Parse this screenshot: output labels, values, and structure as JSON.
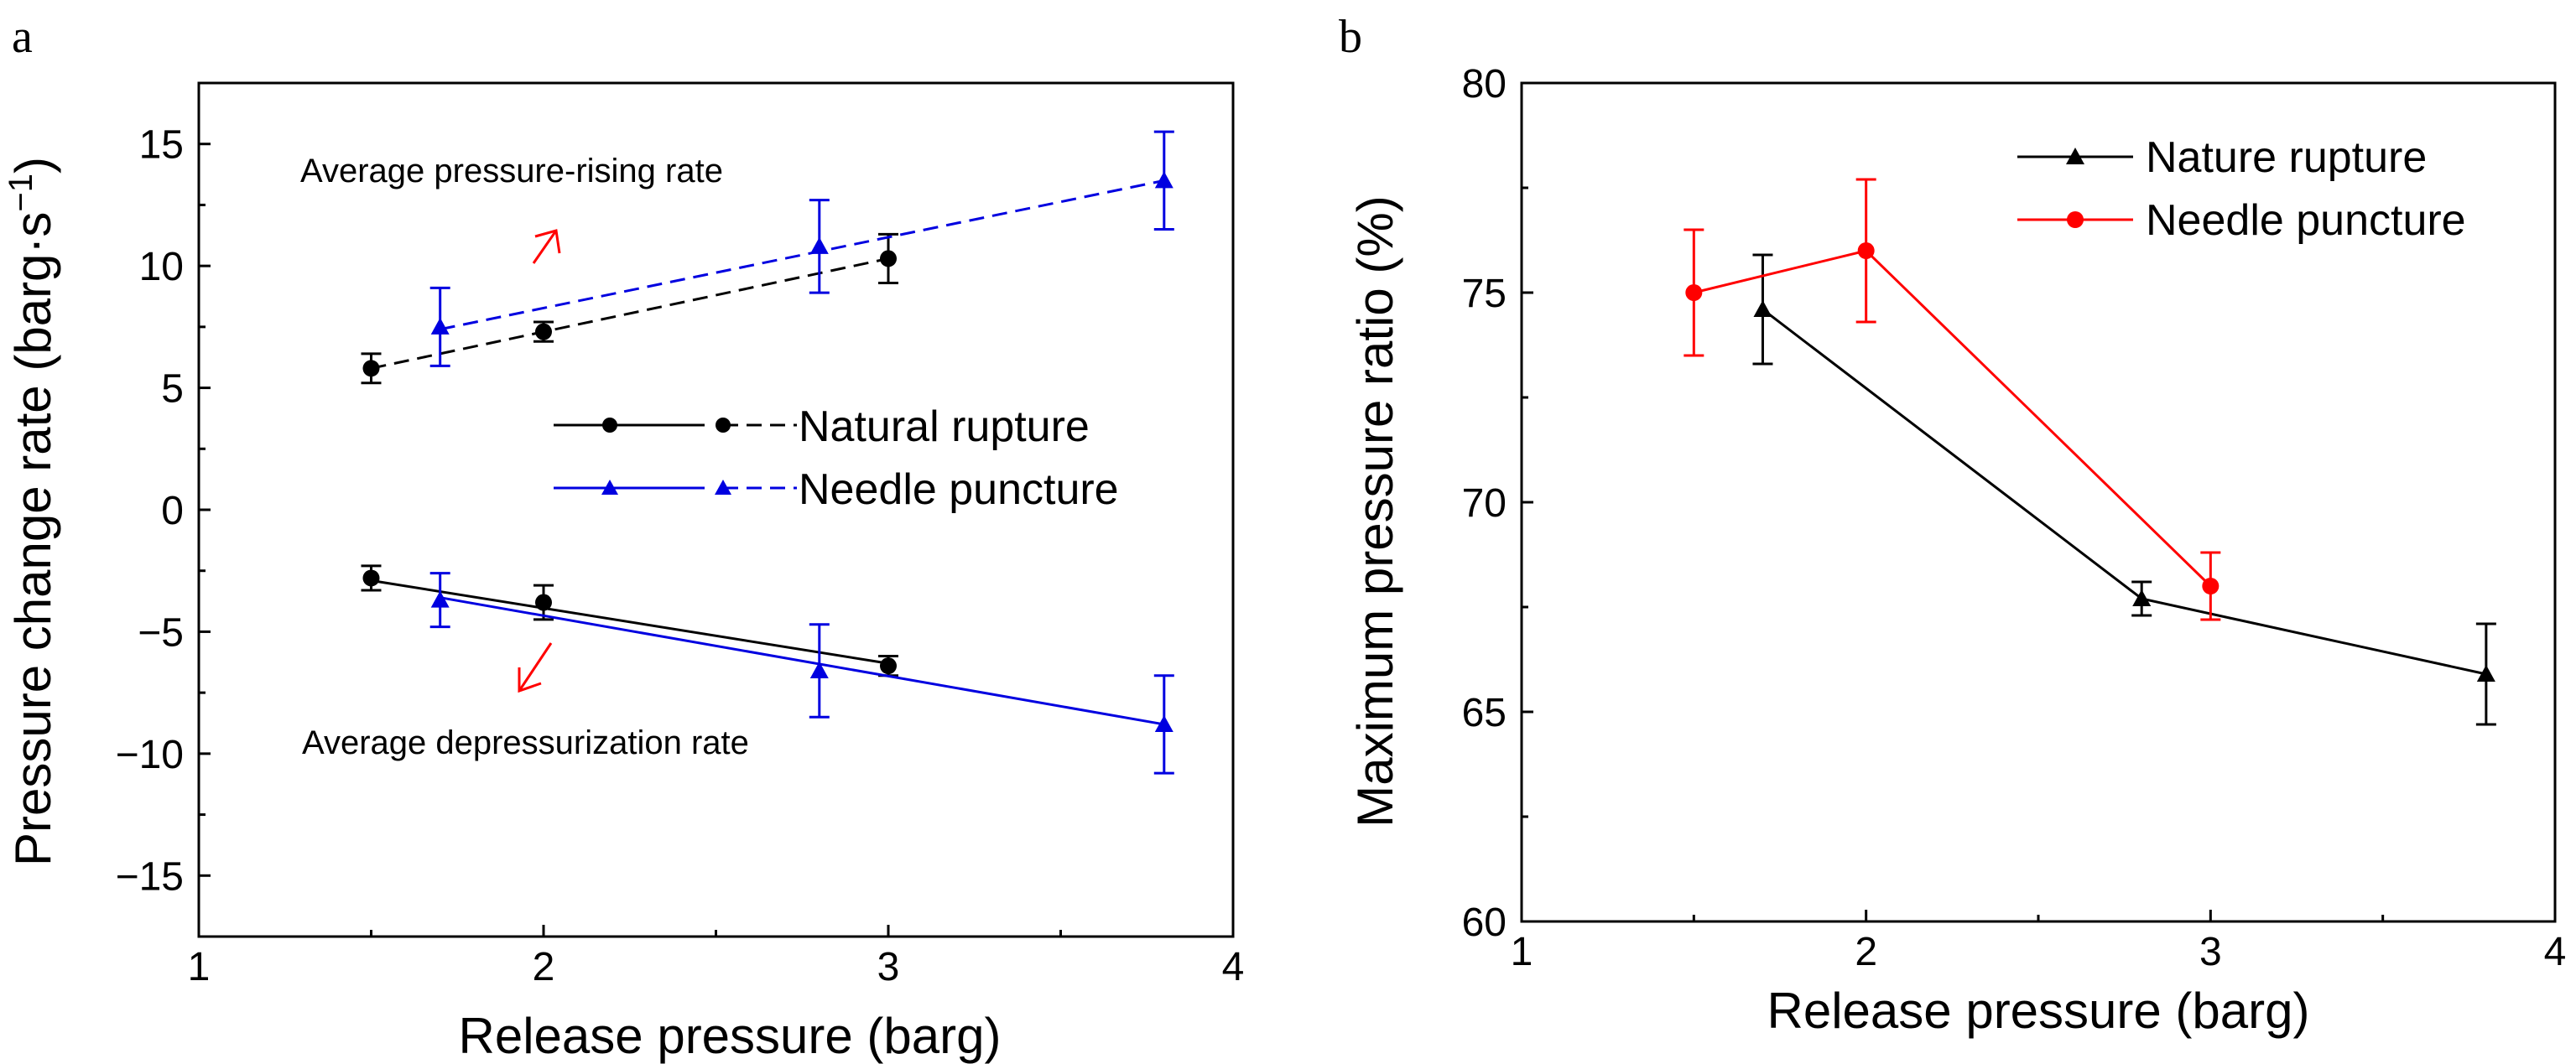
{
  "chart_data": [
    {
      "panel_label": "a",
      "type": "line",
      "xlabel": "Release pressure (barg)",
      "ylabel_main": "Pressure change rate (barg·s",
      "ylabel_sup": "−1",
      "ylabel_close": ")",
      "xlim": [
        1,
        4
      ],
      "ylim": [
        -17.5,
        17.5
      ],
      "xticks": [
        1,
        2,
        3,
        4
      ],
      "yticks": [
        -15,
        -10,
        -5,
        0,
        5,
        10,
        15
      ],
      "ytick_labels": [
        "−15",
        "−10",
        "−5",
        "0",
        "5",
        "10",
        "15"
      ],
      "annotations": [
        "Average pressure-rising rate",
        "Average depressurization rate"
      ],
      "legend": [
        "Natural rupture",
        "Needle puncture"
      ],
      "series": [
        {
          "name": "Natural rupture",
          "kind": "rising",
          "color": "#000000",
          "marker": "circle",
          "linestyle": "dashed",
          "x": [
            1.5,
            2.0,
            3.0
          ],
          "y": [
            5.8,
            7.3,
            10.3
          ],
          "err": [
            0.6,
            0.4,
            1.0
          ],
          "fit": [
            [
              1.5,
              5.8
            ],
            [
              3.0,
              10.3
            ]
          ]
        },
        {
          "name": "Needle puncture",
          "kind": "rising",
          "color": "#0000e0",
          "marker": "triangle",
          "linestyle": "dashed",
          "x": [
            1.7,
            2.8,
            3.8
          ],
          "y": [
            7.5,
            10.8,
            13.5
          ],
          "err": [
            1.6,
            1.9,
            2.0
          ],
          "fit": [
            [
              1.7,
              7.4
            ],
            [
              3.8,
              13.5
            ]
          ]
        },
        {
          "name": "Natural rupture",
          "kind": "depressurization",
          "color": "#000000",
          "marker": "circle",
          "linestyle": "solid",
          "x": [
            1.5,
            2.0,
            3.0
          ],
          "y": [
            -2.8,
            -3.8,
            -6.4
          ],
          "err": [
            0.5,
            0.7,
            0.4
          ],
          "fit": [
            [
              1.5,
              -2.9
            ],
            [
              3.0,
              -6.3
            ]
          ]
        },
        {
          "name": "Needle puncture",
          "kind": "depressurization",
          "color": "#0000e0",
          "marker": "triangle",
          "linestyle": "solid",
          "x": [
            1.7,
            2.8,
            3.8
          ],
          "y": [
            -3.7,
            -6.6,
            -8.8
          ],
          "err": [
            1.1,
            1.9,
            2.0
          ],
          "fit": [
            [
              1.7,
              -3.6
            ],
            [
              3.8,
              -8.8
            ]
          ]
        }
      ]
    },
    {
      "panel_label": "b",
      "type": "line",
      "xlabel": "Release pressure (barg)",
      "ylabel": "Maximum pressure ratio (%)",
      "xlim": [
        1,
        4
      ],
      "ylim": [
        60,
        80
      ],
      "xticks": [
        1,
        2,
        3,
        4
      ],
      "yticks": [
        60,
        65,
        70,
        75,
        80
      ],
      "legend": [
        "Nature rupture",
        "Needle puncture"
      ],
      "series": [
        {
          "name": "Nature rupture",
          "color": "#000000",
          "marker": "triangle",
          "x": [
            1.7,
            2.8,
            3.8
          ],
          "y": [
            74.6,
            67.7,
            65.9
          ],
          "err": [
            1.3,
            0.4,
            1.2
          ]
        },
        {
          "name": "Needle puncture",
          "color": "#ff0000",
          "marker": "circle",
          "x": [
            1.5,
            2.0,
            3.0
          ],
          "y": [
            75.0,
            76.0,
            68.0
          ],
          "err": [
            1.5,
            1.7,
            0.8
          ]
        }
      ]
    }
  ]
}
